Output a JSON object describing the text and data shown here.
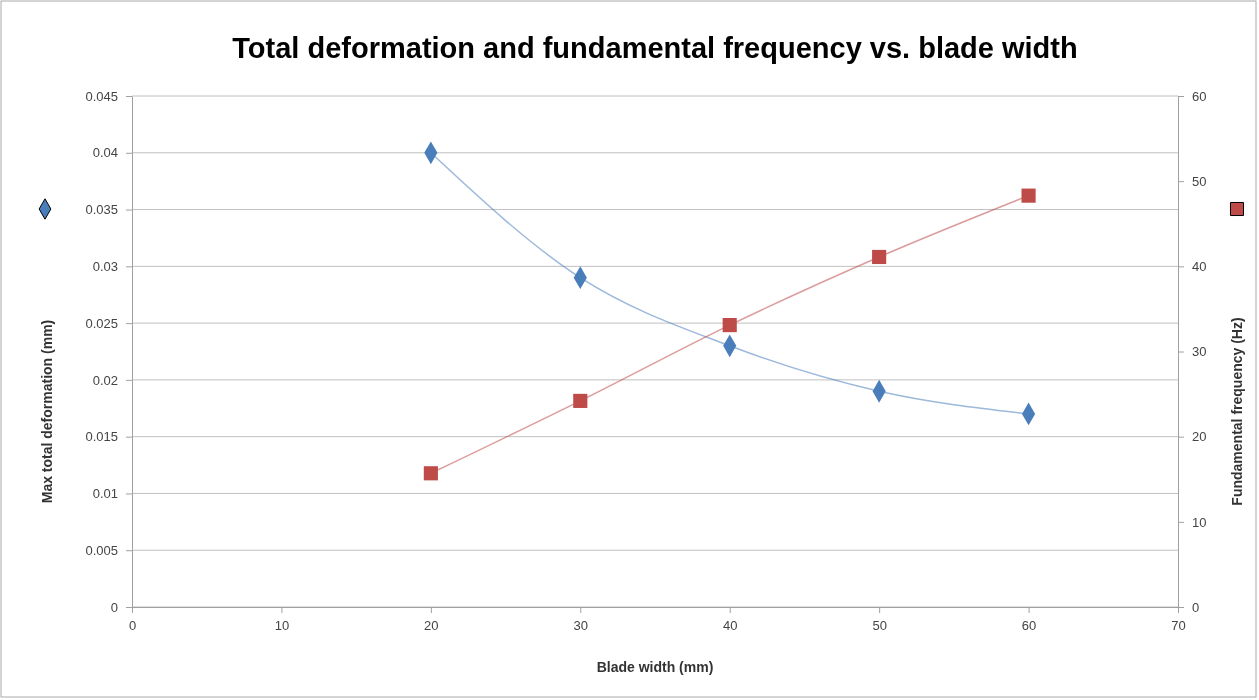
{
  "chart_data": {
    "type": "line",
    "title": "Total deformation and fundamental frequency vs. blade width",
    "xlabel": "Blade width (mm)",
    "ylabel": "Max total deformation (mm)",
    "y2label": "Fundamental frequency (Hz)",
    "x": [
      20,
      30,
      40,
      50,
      60
    ],
    "series": [
      {
        "color": "#4a7ebb",
        "marker": "diamond",
        "values": [
          0.04,
          0.029,
          0.023,
          0.019,
          0.017
        ]
      },
      {
        "color": "#be4b48",
        "marker": "square",
        "axis": "y2",
        "values": [
          15.7,
          24.2,
          33.1,
          41.1,
          48.3
        ]
      }
    ],
    "xlim": [
      0,
      70
    ],
    "xticks": [
      0,
      10,
      20,
      30,
      40,
      50,
      60,
      70
    ],
    "ylim": [
      0,
      0.045
    ],
    "yticks": [
      0,
      0.005,
      0.01,
      0.015,
      0.02,
      0.025,
      0.03,
      0.035,
      0.04,
      0.045
    ],
    "y2lim": [
      0,
      60
    ],
    "y2ticks": [
      0,
      10,
      20,
      30,
      40,
      50,
      60
    ],
    "grid": "y"
  }
}
